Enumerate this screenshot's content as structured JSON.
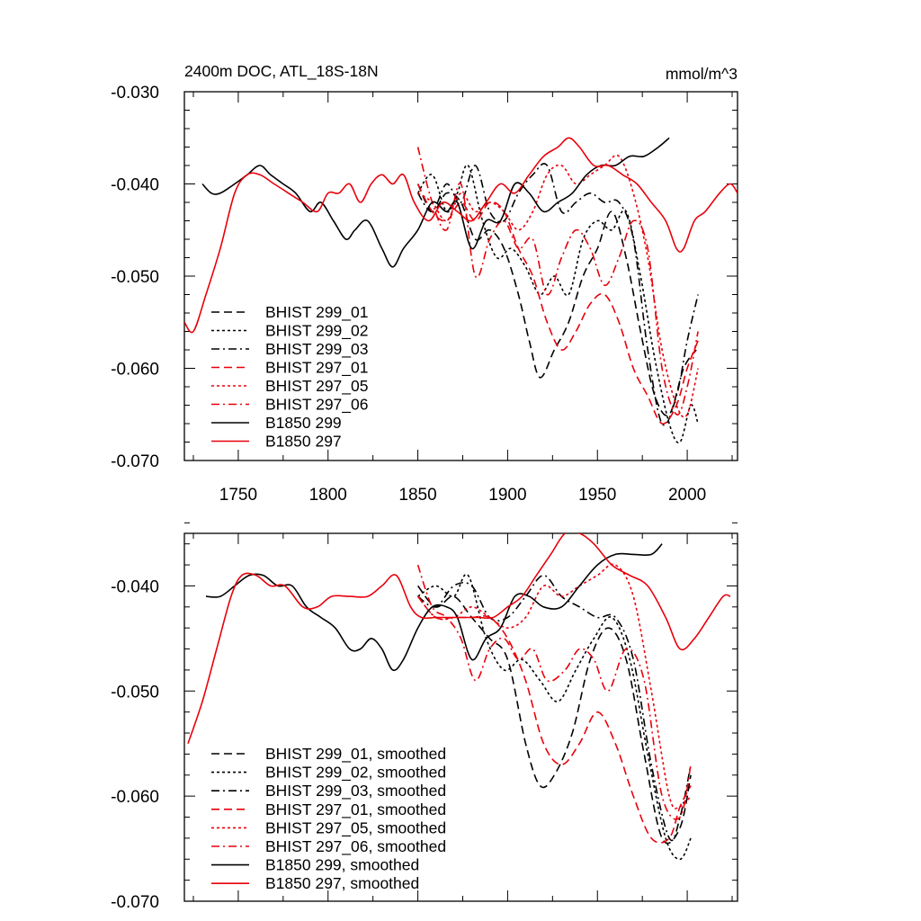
{
  "chart_data": [
    {
      "type": "line",
      "title": "2400m DOC, ATL_18S-18N",
      "units": "mmol/m^3",
      "xlim": [
        1720,
        2028
      ],
      "ylim": [
        -0.07,
        -0.03
      ],
      "xticks": [
        1750,
        1800,
        1850,
        1900,
        1950,
        2000
      ],
      "xtick_labels": [
        "1750",
        "1800",
        "1850",
        "1900",
        "1950",
        "2000"
      ],
      "show_xtick_labels": true,
      "yticks": [
        -0.03,
        -0.04,
        -0.05,
        -0.06,
        -0.07
      ],
      "ytick_labels": [
        "-0.030",
        "-0.040",
        "-0.050",
        "-0.060",
        "-0.070"
      ],
      "legend_position": "lower-left",
      "series": [
        {
          "name": "BHIST 299_01",
          "color": "#000000",
          "dash": "dashed",
          "x": [
            1850,
            1858,
            1866,
            1874,
            1882,
            1890,
            1898,
            1906,
            1912,
            1918,
            1926,
            1934,
            1942,
            1950,
            1958,
            1966,
            1974,
            1982,
            1990,
            1998,
            2005
          ],
          "y": [
            -0.04,
            -0.043,
            -0.041,
            -0.042,
            -0.046,
            -0.045,
            -0.047,
            -0.052,
            -0.057,
            -0.061,
            -0.058,
            -0.055,
            -0.05,
            -0.047,
            -0.043,
            -0.048,
            -0.056,
            -0.063,
            -0.065,
            -0.06,
            -0.058
          ]
        },
        {
          "name": "BHIST 299_02",
          "color": "#000000",
          "dash": "dotted",
          "x": [
            1850,
            1858,
            1866,
            1872,
            1878,
            1886,
            1894,
            1902,
            1910,
            1918,
            1926,
            1934,
            1942,
            1950,
            1958,
            1966,
            1974,
            1982,
            1990,
            1996,
            2002,
            2006
          ],
          "y": [
            -0.041,
            -0.039,
            -0.043,
            -0.041,
            -0.038,
            -0.044,
            -0.048,
            -0.047,
            -0.049,
            -0.052,
            -0.05,
            -0.052,
            -0.046,
            -0.044,
            -0.045,
            -0.043,
            -0.05,
            -0.059,
            -0.066,
            -0.068,
            -0.064,
            -0.066
          ]
        },
        {
          "name": "BHIST 299_03",
          "color": "#000000",
          "dash": "dashdot",
          "x": [
            1850,
            1858,
            1866,
            1874,
            1882,
            1890,
            1898,
            1906,
            1914,
            1922,
            1930,
            1938,
            1946,
            1954,
            1962,
            1970,
            1978,
            1986,
            1994,
            2000,
            2006
          ],
          "y": [
            -0.041,
            -0.043,
            -0.04,
            -0.042,
            -0.038,
            -0.043,
            -0.044,
            -0.041,
            -0.039,
            -0.038,
            -0.043,
            -0.042,
            -0.041,
            -0.042,
            -0.042,
            -0.046,
            -0.058,
            -0.066,
            -0.063,
            -0.057,
            -0.052
          ]
        },
        {
          "name": "BHIST 297_01",
          "color": "#e8000b",
          "dash": "dashed",
          "x": [
            1850,
            1858,
            1866,
            1874,
            1882,
            1890,
            1898,
            1906,
            1914,
            1922,
            1930,
            1938,
            1946,
            1954,
            1962,
            1970,
            1978,
            1986,
            1994,
            2000,
            2006
          ],
          "y": [
            -0.04,
            -0.043,
            -0.044,
            -0.042,
            -0.044,
            -0.042,
            -0.043,
            -0.047,
            -0.05,
            -0.055,
            -0.058,
            -0.056,
            -0.053,
            -0.052,
            -0.055,
            -0.06,
            -0.063,
            -0.066,
            -0.064,
            -0.06,
            -0.057
          ]
        },
        {
          "name": "BHIST 297_05",
          "color": "#e8000b",
          "dash": "dotted",
          "x": [
            1850,
            1858,
            1866,
            1874,
            1882,
            1890,
            1898,
            1906,
            1914,
            1922,
            1930,
            1938,
            1946,
            1954,
            1962,
            1970,
            1978,
            1986,
            1994,
            2000,
            2006
          ],
          "y": [
            -0.041,
            -0.042,
            -0.044,
            -0.041,
            -0.043,
            -0.042,
            -0.043,
            -0.045,
            -0.043,
            -0.039,
            -0.038,
            -0.04,
            -0.039,
            -0.038,
            -0.037,
            -0.041,
            -0.048,
            -0.058,
            -0.064,
            -0.065,
            -0.06
          ]
        },
        {
          "name": "BHIST 297_06",
          "color": "#e8000b",
          "dash": "dashdot",
          "x": [
            1850,
            1858,
            1866,
            1874,
            1882,
            1890,
            1898,
            1906,
            1914,
            1922,
            1930,
            1938,
            1946,
            1954,
            1962,
            1970,
            1978,
            1986,
            1994,
            2000,
            2006
          ],
          "y": [
            -0.036,
            -0.042,
            -0.045,
            -0.04,
            -0.05,
            -0.046,
            -0.044,
            -0.047,
            -0.046,
            -0.052,
            -0.048,
            -0.045,
            -0.047,
            -0.051,
            -0.048,
            -0.044,
            -0.047,
            -0.06,
            -0.065,
            -0.062,
            -0.056
          ]
        },
        {
          "name": "B1850 299",
          "color": "#000000",
          "dash": "solid",
          "x": [
            1730,
            1735,
            1740,
            1748,
            1755,
            1762,
            1768,
            1775,
            1782,
            1790,
            1796,
            1803,
            1810,
            1815,
            1822,
            1830,
            1836,
            1842,
            1850,
            1858,
            1866,
            1872,
            1880,
            1888,
            1896,
            1904,
            1912,
            1920,
            1928,
            1936,
            1944,
            1952,
            1960,
            1968,
            1976,
            1984,
            1990
          ],
          "y": [
            -0.04,
            -0.041,
            -0.041,
            -0.04,
            -0.039,
            -0.038,
            -0.039,
            -0.04,
            -0.041,
            -0.043,
            -0.042,
            -0.044,
            -0.046,
            -0.045,
            -0.044,
            -0.047,
            -0.049,
            -0.047,
            -0.045,
            -0.042,
            -0.043,
            -0.042,
            -0.047,
            -0.044,
            -0.044,
            -0.04,
            -0.041,
            -0.043,
            -0.042,
            -0.041,
            -0.039,
            -0.038,
            -0.038,
            -0.037,
            -0.037,
            -0.036,
            -0.035
          ]
        },
        {
          "name": "B1850 297",
          "color": "#e8000b",
          "dash": "solid",
          "x": [
            1720,
            1725,
            1732,
            1740,
            1748,
            1755,
            1762,
            1770,
            1778,
            1786,
            1794,
            1800,
            1806,
            1812,
            1818,
            1824,
            1830,
            1836,
            1842,
            1848,
            1856,
            1864,
            1872,
            1880,
            1888,
            1896,
            1904,
            1912,
            1920,
            1928,
            1934,
            1940,
            1948,
            1956,
            1964,
            1972,
            1980,
            1988,
            1994,
            1998,
            2004,
            2010,
            2018,
            2024,
            2028
          ],
          "y": [
            -0.055,
            -0.056,
            -0.052,
            -0.047,
            -0.041,
            -0.039,
            -0.039,
            -0.04,
            -0.041,
            -0.042,
            -0.043,
            -0.041,
            -0.041,
            -0.04,
            -0.042,
            -0.04,
            -0.039,
            -0.04,
            -0.039,
            -0.042,
            -0.044,
            -0.042,
            -0.043,
            -0.044,
            -0.042,
            -0.04,
            -0.041,
            -0.039,
            -0.037,
            -0.036,
            -0.035,
            -0.036,
            -0.038,
            -0.038,
            -0.039,
            -0.04,
            -0.042,
            -0.044,
            -0.047,
            -0.047,
            -0.044,
            -0.043,
            -0.041,
            -0.04,
            -0.041
          ]
        }
      ]
    },
    {
      "type": "line",
      "title": "",
      "xlim": [
        1720,
        2028
      ],
      "ylim": [
        -0.07,
        -0.035
      ],
      "xticks": [
        1750,
        1800,
        1850,
        1900,
        1950,
        2000
      ],
      "xtick_labels": [],
      "show_xtick_labels": false,
      "yticks": [
        -0.04,
        -0.05,
        -0.06,
        -0.07
      ],
      "ytick_labels": [
        "-0.040",
        "-0.050",
        "-0.060",
        "-0.070"
      ],
      "legend_position": "lower-left",
      "series": [
        {
          "name": "BHIST 299_01, smoothed",
          "color": "#000000",
          "dash": "dashed",
          "x": [
            1850,
            1860,
            1870,
            1880,
            1890,
            1900,
            1910,
            1918,
            1926,
            1936,
            1946,
            1956,
            1966,
            1976,
            1986,
            1996,
            2002
          ],
          "y": [
            -0.04,
            -0.042,
            -0.041,
            -0.043,
            -0.045,
            -0.047,
            -0.055,
            -0.059,
            -0.058,
            -0.054,
            -0.047,
            -0.044,
            -0.047,
            -0.056,
            -0.064,
            -0.063,
            -0.058
          ]
        },
        {
          "name": "BHIST 299_02, smoothed",
          "color": "#000000",
          "dash": "dotted",
          "x": [
            1850,
            1860,
            1870,
            1878,
            1888,
            1898,
            1908,
            1918,
            1928,
            1938,
            1948,
            1958,
            1968,
            1978,
            1988,
            1996,
            2002
          ],
          "y": [
            -0.041,
            -0.04,
            -0.041,
            -0.039,
            -0.045,
            -0.048,
            -0.047,
            -0.049,
            -0.051,
            -0.048,
            -0.045,
            -0.043,
            -0.047,
            -0.056,
            -0.064,
            -0.066,
            -0.064
          ]
        },
        {
          "name": "BHIST 299_03, smoothed",
          "color": "#000000",
          "dash": "dashdot",
          "x": [
            1850,
            1860,
            1870,
            1880,
            1890,
            1900,
            1910,
            1920,
            1930,
            1940,
            1950,
            1960,
            1970,
            1980,
            1990,
            1996,
            2002
          ],
          "y": [
            -0.041,
            -0.042,
            -0.04,
            -0.04,
            -0.043,
            -0.043,
            -0.041,
            -0.039,
            -0.041,
            -0.042,
            -0.043,
            -0.043,
            -0.047,
            -0.057,
            -0.064,
            -0.062,
            -0.057
          ]
        },
        {
          "name": "BHIST 297_01, smoothed",
          "color": "#e8000b",
          "dash": "dashed",
          "x": [
            1850,
            1860,
            1870,
            1880,
            1890,
            1900,
            1910,
            1920,
            1930,
            1940,
            1950,
            1960,
            1970,
            1980,
            1990,
            1996,
            2002
          ],
          "y": [
            -0.041,
            -0.043,
            -0.043,
            -0.043,
            -0.043,
            -0.045,
            -0.049,
            -0.055,
            -0.057,
            -0.055,
            -0.052,
            -0.055,
            -0.06,
            -0.064,
            -0.064,
            -0.061,
            -0.059
          ]
        },
        {
          "name": "BHIST 297_05, smoothed",
          "color": "#e8000b",
          "dash": "dotted",
          "x": [
            1850,
            1860,
            1870,
            1880,
            1890,
            1900,
            1910,
            1920,
            1930,
            1940,
            1950,
            1960,
            1970,
            1980,
            1990,
            1996,
            2002
          ],
          "y": [
            -0.041,
            -0.043,
            -0.043,
            -0.042,
            -0.043,
            -0.044,
            -0.043,
            -0.04,
            -0.041,
            -0.04,
            -0.039,
            -0.038,
            -0.041,
            -0.05,
            -0.06,
            -0.061,
            -0.06
          ]
        },
        {
          "name": "BHIST 297_06, smoothed",
          "color": "#e8000b",
          "dash": "dashdot",
          "x": [
            1850,
            1858,
            1866,
            1874,
            1882,
            1890,
            1898,
            1906,
            1914,
            1922,
            1932,
            1940,
            1948,
            1956,
            1966,
            1976,
            1986,
            1996,
            2002
          ],
          "y": [
            -0.038,
            -0.042,
            -0.043,
            -0.045,
            -0.049,
            -0.046,
            -0.045,
            -0.047,
            -0.046,
            -0.049,
            -0.048,
            -0.046,
            -0.047,
            -0.05,
            -0.046,
            -0.049,
            -0.06,
            -0.062,
            -0.057
          ]
        },
        {
          "name": "B1850 299, smoothed",
          "color": "#000000",
          "dash": "solid",
          "x": [
            1732,
            1740,
            1748,
            1756,
            1764,
            1772,
            1780,
            1788,
            1796,
            1804,
            1812,
            1818,
            1824,
            1830,
            1836,
            1842,
            1850,
            1858,
            1866,
            1872,
            1880,
            1888,
            1896,
            1904,
            1912,
            1920,
            1930,
            1940,
            1950,
            1960,
            1970,
            1980,
            1986
          ],
          "y": [
            -0.041,
            -0.041,
            -0.04,
            -0.039,
            -0.039,
            -0.04,
            -0.04,
            -0.042,
            -0.043,
            -0.044,
            -0.046,
            -0.046,
            -0.045,
            -0.046,
            -0.048,
            -0.047,
            -0.044,
            -0.042,
            -0.042,
            -0.043,
            -0.047,
            -0.045,
            -0.044,
            -0.041,
            -0.041,
            -0.042,
            -0.042,
            -0.04,
            -0.038,
            -0.037,
            -0.037,
            -0.037,
            -0.036
          ]
        },
        {
          "name": "B1850 297, smoothed",
          "color": "#e8000b",
          "dash": "solid",
          "x": [
            1722,
            1730,
            1738,
            1746,
            1752,
            1760,
            1768,
            1776,
            1786,
            1794,
            1802,
            1812,
            1822,
            1830,
            1838,
            1846,
            1852,
            1860,
            1868,
            1876,
            1884,
            1892,
            1900,
            1908,
            1916,
            1924,
            1932,
            1940,
            1948,
            1958,
            1968,
            1978,
            1988,
            1996,
            2004,
            2012,
            2020,
            2024
          ],
          "y": [
            -0.055,
            -0.051,
            -0.046,
            -0.041,
            -0.039,
            -0.039,
            -0.04,
            -0.04,
            -0.042,
            -0.042,
            -0.041,
            -0.041,
            -0.041,
            -0.04,
            -0.039,
            -0.042,
            -0.043,
            -0.043,
            -0.043,
            -0.043,
            -0.043,
            -0.043,
            -0.042,
            -0.041,
            -0.039,
            -0.037,
            -0.035,
            -0.035,
            -0.036,
            -0.038,
            -0.039,
            -0.04,
            -0.043,
            -0.046,
            -0.045,
            -0.043,
            -0.041,
            -0.041
          ]
        }
      ]
    }
  ]
}
